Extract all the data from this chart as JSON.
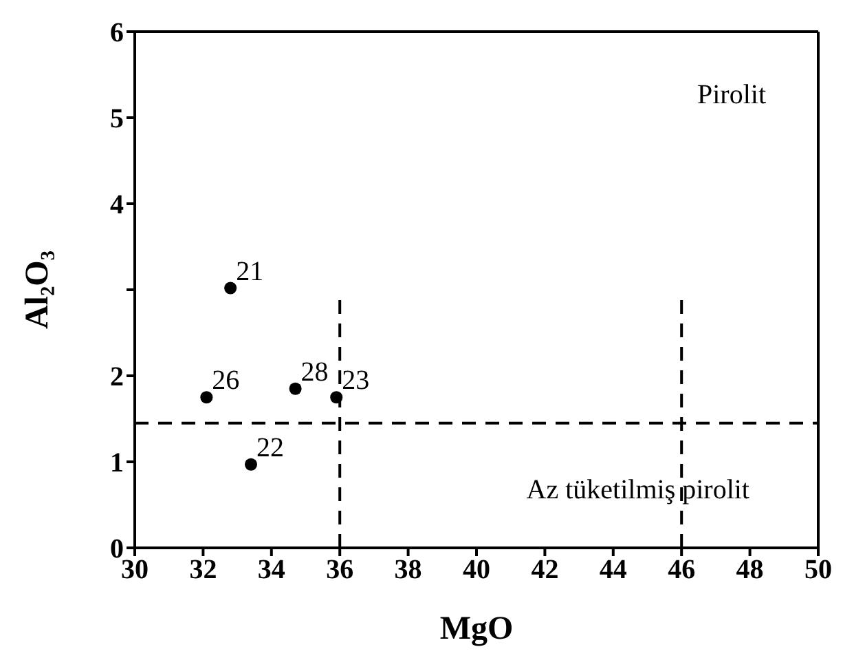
{
  "chart_data": {
    "type": "scatter",
    "xlabel": "MgO",
    "ylabel": "Al₂O₃",
    "xlim": [
      30,
      50
    ],
    "xticks": [
      30,
      32,
      34,
      36,
      38,
      40,
      42,
      44,
      46,
      48,
      50
    ],
    "ylim": [
      0,
      6
    ],
    "yticks": [
      0,
      1,
      2,
      {
        "value": 3,
        "label": null
      },
      4,
      5,
      6
    ],
    "series": [
      {
        "color": "#000000",
        "marker": "circle",
        "x": [
          32.8,
          33.4,
          35.9,
          32.1,
          34.7
        ],
        "values": [
          3.02,
          0.97,
          1.75,
          1.75,
          1.85
        ]
      },
      {
        "type": "line",
        "color": "#000000",
        "line_style": "dashed",
        "marker": "none",
        "x": [
          36,
          36
        ],
        "values": [
          0,
          2.9
        ]
      },
      {
        "type": "line",
        "color": "#000000",
        "line_style": "dashed",
        "marker": "none",
        "x": [
          46,
          46
        ],
        "values": [
          0,
          2.9
        ]
      }
    ],
    "ref_lines": [
      {
        "axis": "y",
        "value": 1.45,
        "color": "#000000",
        "line_style": "dashed"
      }
    ],
    "annotations": [
      "Pirolit",
      "Az tüketilmiş pirolit",
      {
        "text": "21",
        "x": 32.8,
        "y": 3.02
      },
      {
        "text": "22",
        "x": 33.4,
        "y": 0.97
      },
      {
        "text": "23",
        "x": 35.9,
        "y": 1.75
      },
      {
        "text": "26",
        "x": 32.1,
        "y": 1.75
      },
      {
        "text": "28",
        "x": 34.7,
        "y": 1.85
      }
    ]
  }
}
